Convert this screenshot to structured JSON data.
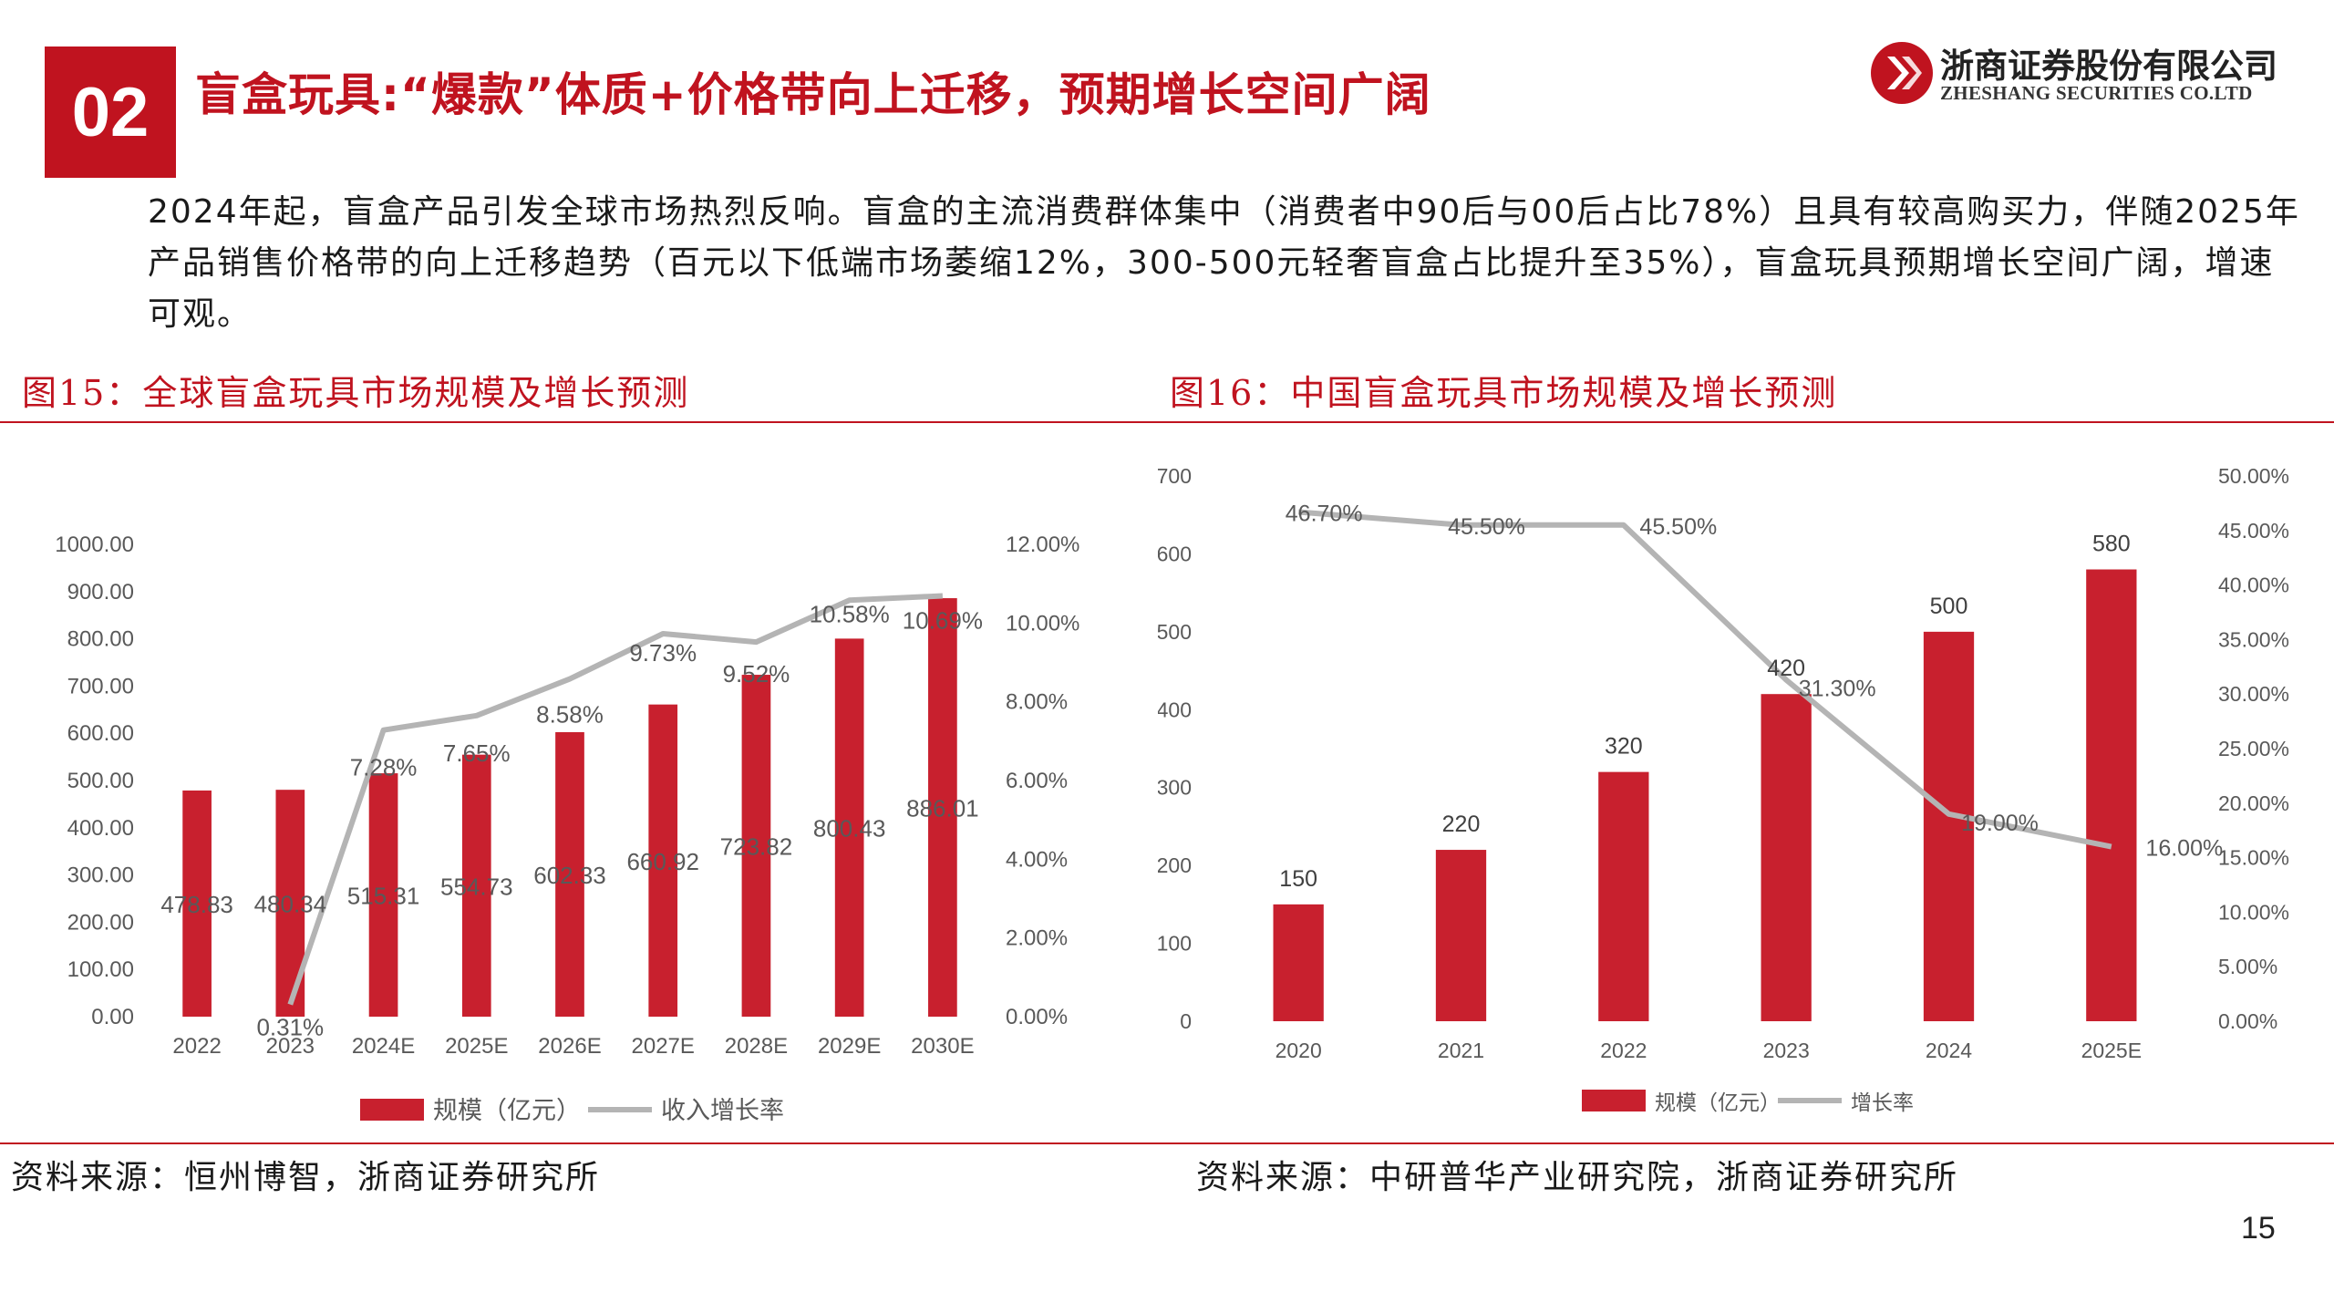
{
  "header": {
    "section_number": "02",
    "title": "盲盒玩具:“爆款”体质+价格带向上迁移，预期增长空间广阔",
    "logo_cn": "浙商证券股份有限公司",
    "logo_en": "ZHESHANG SECURITIES CO.LTD"
  },
  "intro": "2024年起，盲盒产品引发全球市场热烈反响。盲盒的主流消费群体集中（消费者中90后与00后占比78%）且具有较高购买力，伴随2025年产品销售价格带的向上迁移趋势（百元以下低端市场萎缩12%，300-500元轻奢盲盒占比提升至35%），盲盒玩具预期增长空间广阔，增速可观。",
  "figures": [
    {
      "title": "图15：全球盲盒玩具市场规模及增长预测",
      "source": "资料来源：恒州博智，浙商证券研究所"
    },
    {
      "title": "图16：中国盲盒玩具市场规模及增长预测",
      "source": "资料来源：中研普华产业研究院，浙商证券研究所"
    }
  ],
  "page_number": "15",
  "colors": {
    "accent": "#c0131f",
    "bar": "#c8202e",
    "line": "#b4b4b4"
  },
  "chart_data": [
    {
      "type": "bar",
      "categories": [
        "2022",
        "2023",
        "2024E",
        "2025E",
        "2026E",
        "2027E",
        "2028E",
        "2029E",
        "2030E"
      ],
      "series": [
        {
          "name": "规模（亿元）",
          "type": "bar",
          "axis": "left",
          "values": [
            478.83,
            480.34,
            515.31,
            554.73,
            602.33,
            660.92,
            723.82,
            800.43,
            886.01
          ],
          "labels": [
            "478.83",
            "480.34",
            "515.31",
            "554.73",
            "602.33",
            "660.92",
            "723.82",
            "800.43",
            "886.01"
          ]
        },
        {
          "name": "收入增长率",
          "type": "line",
          "axis": "right",
          "values": [
            null,
            0.31,
            7.28,
            7.65,
            8.58,
            9.73,
            9.52,
            10.58,
            10.69
          ],
          "labels": [
            null,
            "0.31%",
            "7.28%",
            "7.65%",
            "8.58%",
            "9.73%",
            "9.52%",
            "10.58%",
            "10.69%"
          ]
        }
      ],
      "y_left": {
        "min": 0,
        "max": 1000,
        "ticks": [
          "0.00",
          "100.00",
          "200.00",
          "300.00",
          "400.00",
          "500.00",
          "600.00",
          "700.00",
          "800.00",
          "900.00",
          "1000.00"
        ]
      },
      "y_right": {
        "min": 0,
        "max": 12,
        "ticks": [
          "0.00%",
          "2.00%",
          "4.00%",
          "6.00%",
          "8.00%",
          "10.00%",
          "12.00%"
        ]
      },
      "grid": false,
      "legend": "bottom"
    },
    {
      "type": "bar",
      "categories": [
        "2020",
        "2021",
        "2022",
        "2023",
        "2024",
        "2025E"
      ],
      "series": [
        {
          "name": "规模（亿元）",
          "type": "bar",
          "axis": "left",
          "values": [
            150,
            220,
            320,
            420,
            500,
            580
          ],
          "labels": [
            "150",
            "220",
            "320",
            "420",
            "500",
            "580"
          ]
        },
        {
          "name": "增长率",
          "type": "line",
          "axis": "right",
          "values": [
            46.7,
            45.5,
            45.5,
            31.3,
            19.0,
            16.0
          ],
          "labels": [
            "46.70%",
            "45.50%",
            "45.50%",
            "31.30%",
            "19.00%",
            "16.00%"
          ]
        }
      ],
      "y_left": {
        "min": 0,
        "max": 700,
        "ticks": [
          "0",
          "100",
          "200",
          "300",
          "400",
          "500",
          "600",
          "700"
        ]
      },
      "y_right": {
        "min": 0,
        "max": 50,
        "ticks": [
          "0.00%",
          "5.00%",
          "10.00%",
          "15.00%",
          "20.00%",
          "25.00%",
          "30.00%",
          "35.00%",
          "40.00%",
          "45.00%",
          "50.00%"
        ]
      },
      "grid": false,
      "legend": "bottom"
    }
  ]
}
